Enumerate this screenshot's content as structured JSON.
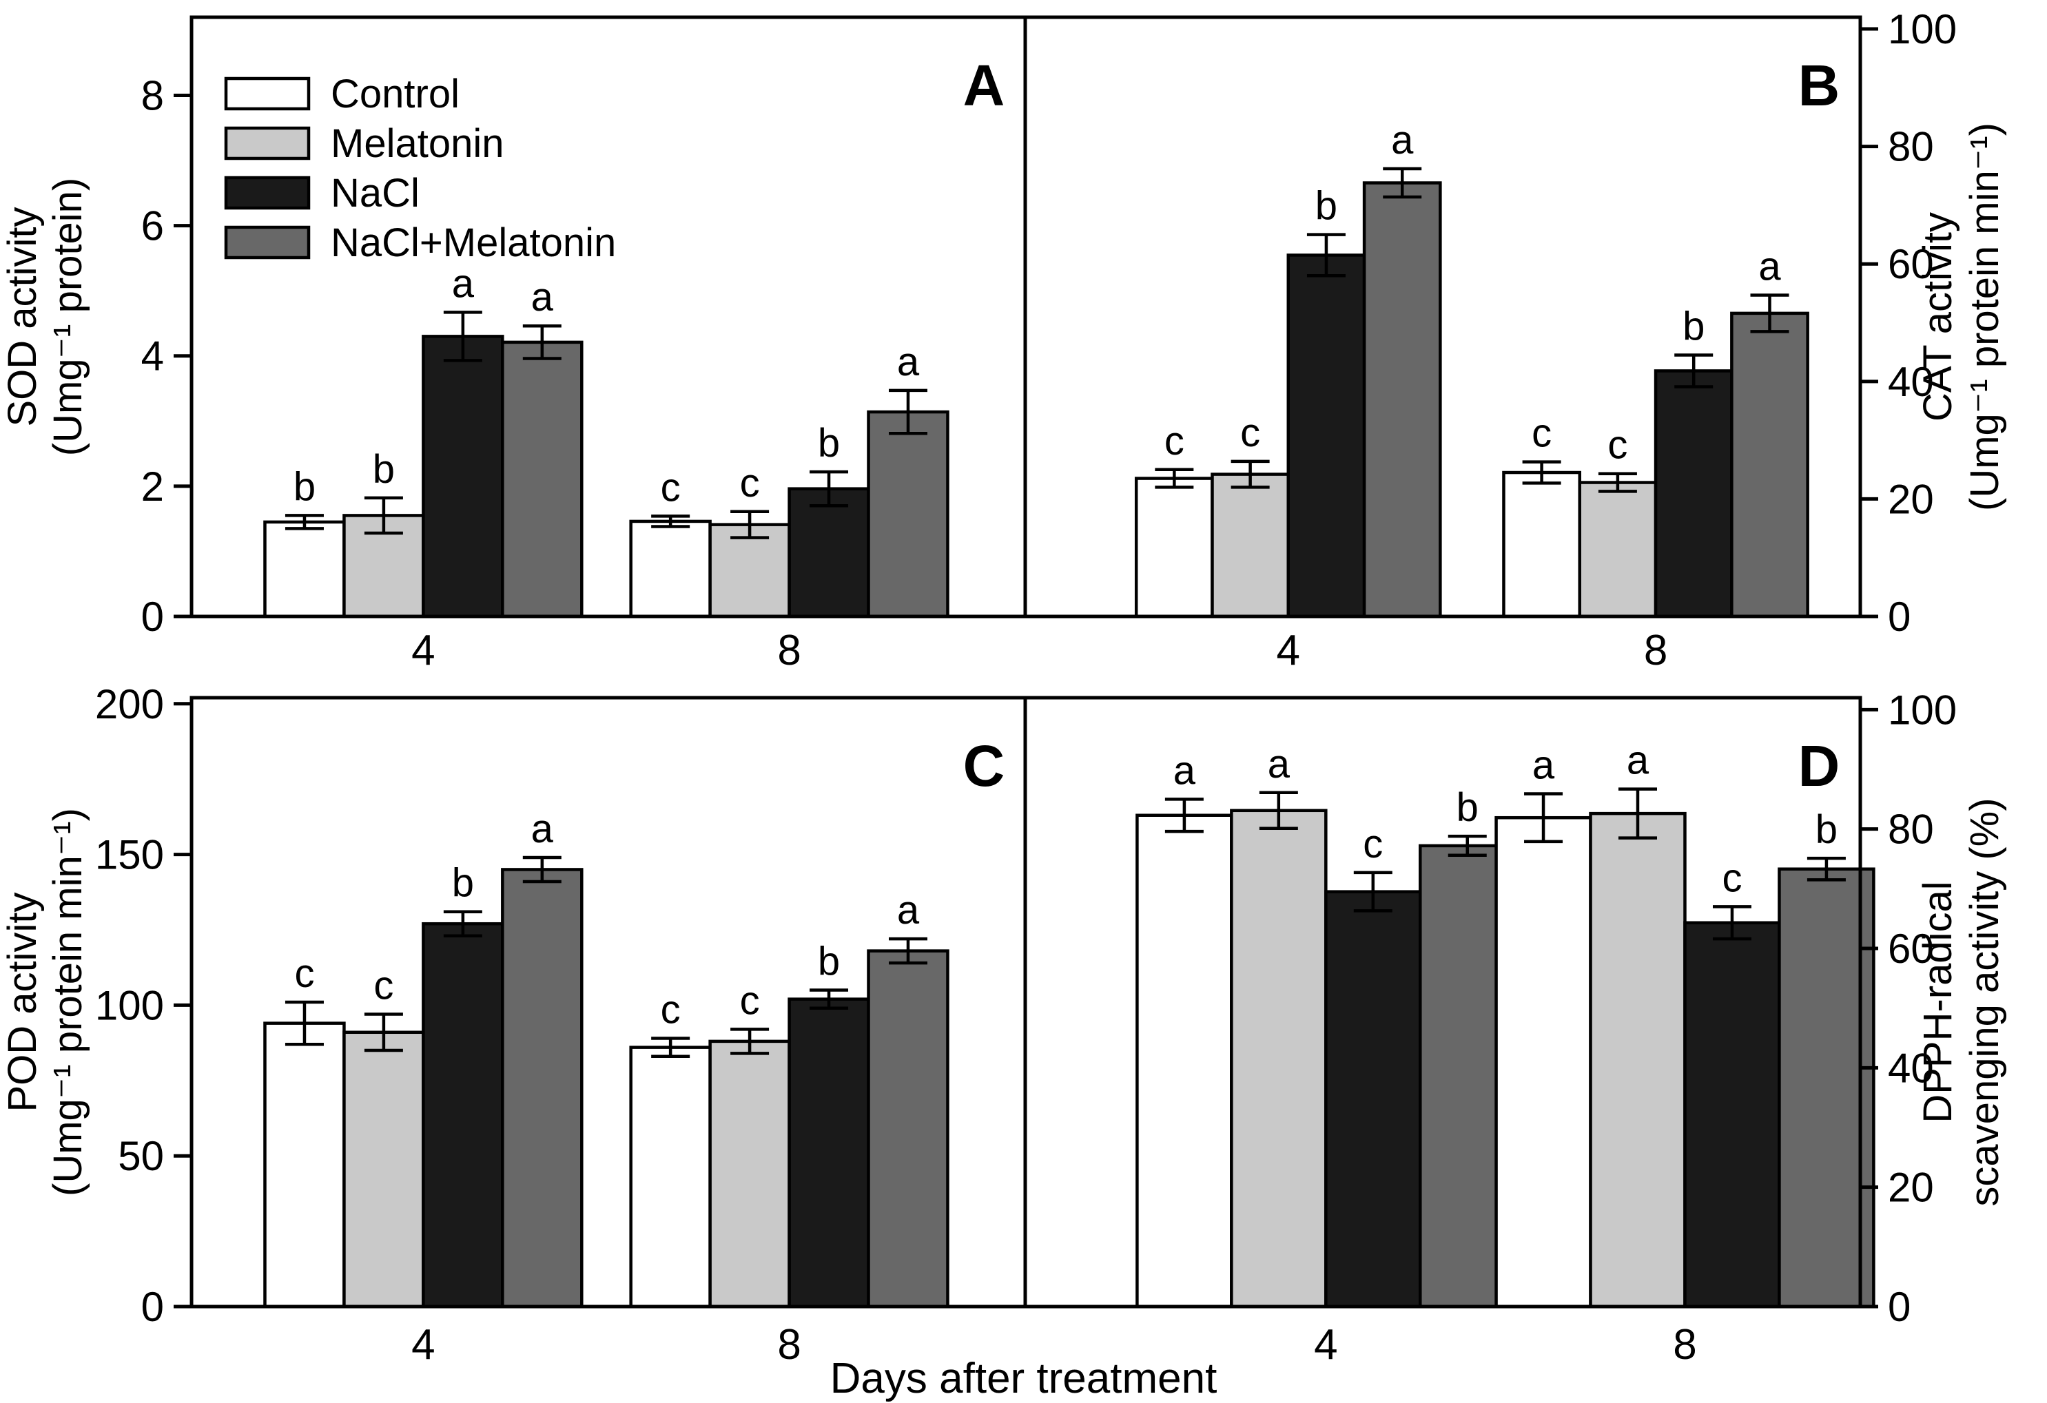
{
  "figure": {
    "xlabel": "Days after treatment",
    "panel_letters": [
      "A",
      "B",
      "C",
      "D"
    ],
    "x_tick_labels": [
      "4",
      "8"
    ],
    "legend": {
      "items": [
        "Control",
        "Melatonin",
        "NaCl",
        "NaCl+Melatonin"
      ]
    },
    "colors": {
      "series_fills": [
        "#ffffff",
        "#c9c9c9",
        "#1a1a1a",
        "#686868"
      ],
      "axis": "#000000",
      "text": "#000000",
      "background": "#ffffff"
    }
  },
  "chart_data": [
    {
      "panel": "A",
      "type": "bar",
      "title": "",
      "ylabel_lines": [
        "SOD activity",
        "(Umg⁻¹ protein)"
      ],
      "yaxis_side": "left",
      "ylim": [
        0,
        9.2
      ],
      "yticks": [
        0,
        2,
        4,
        6,
        8
      ],
      "grid": false,
      "categories": [
        "4",
        "8"
      ],
      "series": [
        {
          "name": "Control",
          "values": [
            1.45,
            1.46
          ],
          "errors": [
            0.1,
            0.08
          ],
          "letters": [
            "b",
            "c"
          ]
        },
        {
          "name": "Melatonin",
          "values": [
            1.55,
            1.41
          ],
          "errors": [
            0.27,
            0.2
          ],
          "letters": [
            "b",
            "c"
          ]
        },
        {
          "name": "NaCl",
          "values": [
            4.3,
            1.96
          ],
          "errors": [
            0.37,
            0.26
          ],
          "letters": [
            "a",
            "b"
          ]
        },
        {
          "name": "NaCl+Melatonin",
          "values": [
            4.21,
            3.14
          ],
          "errors": [
            0.25,
            0.33
          ],
          "letters": [
            "a",
            "a"
          ]
        }
      ],
      "legend_position": "top-left"
    },
    {
      "panel": "B",
      "type": "bar",
      "title": "",
      "ylabel_lines": [
        "CAT activity",
        "(Umg⁻¹ protein min⁻¹)"
      ],
      "yaxis_side": "right",
      "ylim": [
        0,
        102
      ],
      "yticks": [
        0,
        20,
        40,
        60,
        80,
        100
      ],
      "grid": false,
      "categories": [
        "4",
        "8"
      ],
      "series": [
        {
          "name": "Control",
          "values": [
            23.5,
            24.5
          ],
          "errors": [
            1.5,
            1.8
          ],
          "letters": [
            "c",
            "c"
          ]
        },
        {
          "name": "Melatonin",
          "values": [
            24.2,
            22.8
          ],
          "errors": [
            2.2,
            1.5
          ],
          "letters": [
            "c",
            "c"
          ]
        },
        {
          "name": "NaCl",
          "values": [
            61.5,
            41.8
          ],
          "errors": [
            3.5,
            2.7
          ],
          "letters": [
            "b",
            "b"
          ]
        },
        {
          "name": "NaCl+Melatonin",
          "values": [
            73.8,
            51.6
          ],
          "errors": [
            2.4,
            3.1
          ],
          "letters": [
            "a",
            "a"
          ]
        }
      ],
      "legend_position": "none"
    },
    {
      "panel": "C",
      "type": "bar",
      "title": "",
      "ylabel_lines": [
        "POD activity",
        "(Umg⁻¹ protein min⁻¹)"
      ],
      "yaxis_side": "left",
      "ylim": [
        0,
        202
      ],
      "yticks": [
        0,
        50,
        100,
        150,
        200
      ],
      "grid": false,
      "categories": [
        "4",
        "8"
      ],
      "series": [
        {
          "name": "Control",
          "values": [
            94,
            86
          ],
          "errors": [
            7,
            3
          ],
          "letters": [
            "c",
            "c"
          ]
        },
        {
          "name": "Melatonin",
          "values": [
            91,
            88
          ],
          "errors": [
            6,
            4
          ],
          "letters": [
            "c",
            "c"
          ]
        },
        {
          "name": "NaCl",
          "values": [
            127,
            102
          ],
          "errors": [
            4,
            3
          ],
          "letters": [
            "b",
            "b"
          ]
        },
        {
          "name": "NaCl+Melatonin",
          "values": [
            145,
            118
          ],
          "errors": [
            4,
            4
          ],
          "letters": [
            "a",
            "a"
          ]
        }
      ],
      "legend_position": "none"
    },
    {
      "panel": "D",
      "type": "bar",
      "title": "",
      "ylabel_lines": [
        "DPPH-radical",
        "scavenging activity (%)"
      ],
      "yaxis_side": "right",
      "ylim": [
        0,
        102
      ],
      "yticks": [
        0,
        20,
        40,
        60,
        80,
        100
      ],
      "grid": false,
      "categories": [
        "4",
        "8"
      ],
      "series": [
        {
          "name": "Control",
          "values": [
            82.3,
            81.9
          ],
          "errors": [
            2.7,
            4.0
          ],
          "letters": [
            "a",
            "a"
          ]
        },
        {
          "name": "Melatonin",
          "values": [
            83.1,
            82.6
          ],
          "errors": [
            3.0,
            4.1
          ],
          "letters": [
            "a",
            "a"
          ]
        },
        {
          "name": "NaCl",
          "values": [
            69.5,
            64.3
          ],
          "errors": [
            3.2,
            2.7
          ],
          "letters": [
            "c",
            "c"
          ]
        },
        {
          "name": "NaCl+Melatonin",
          "values": [
            77.2,
            73.3
          ],
          "errors": [
            1.6,
            1.8
          ],
          "letters": [
            "b",
            "b"
          ]
        }
      ],
      "legend_position": "none"
    }
  ]
}
